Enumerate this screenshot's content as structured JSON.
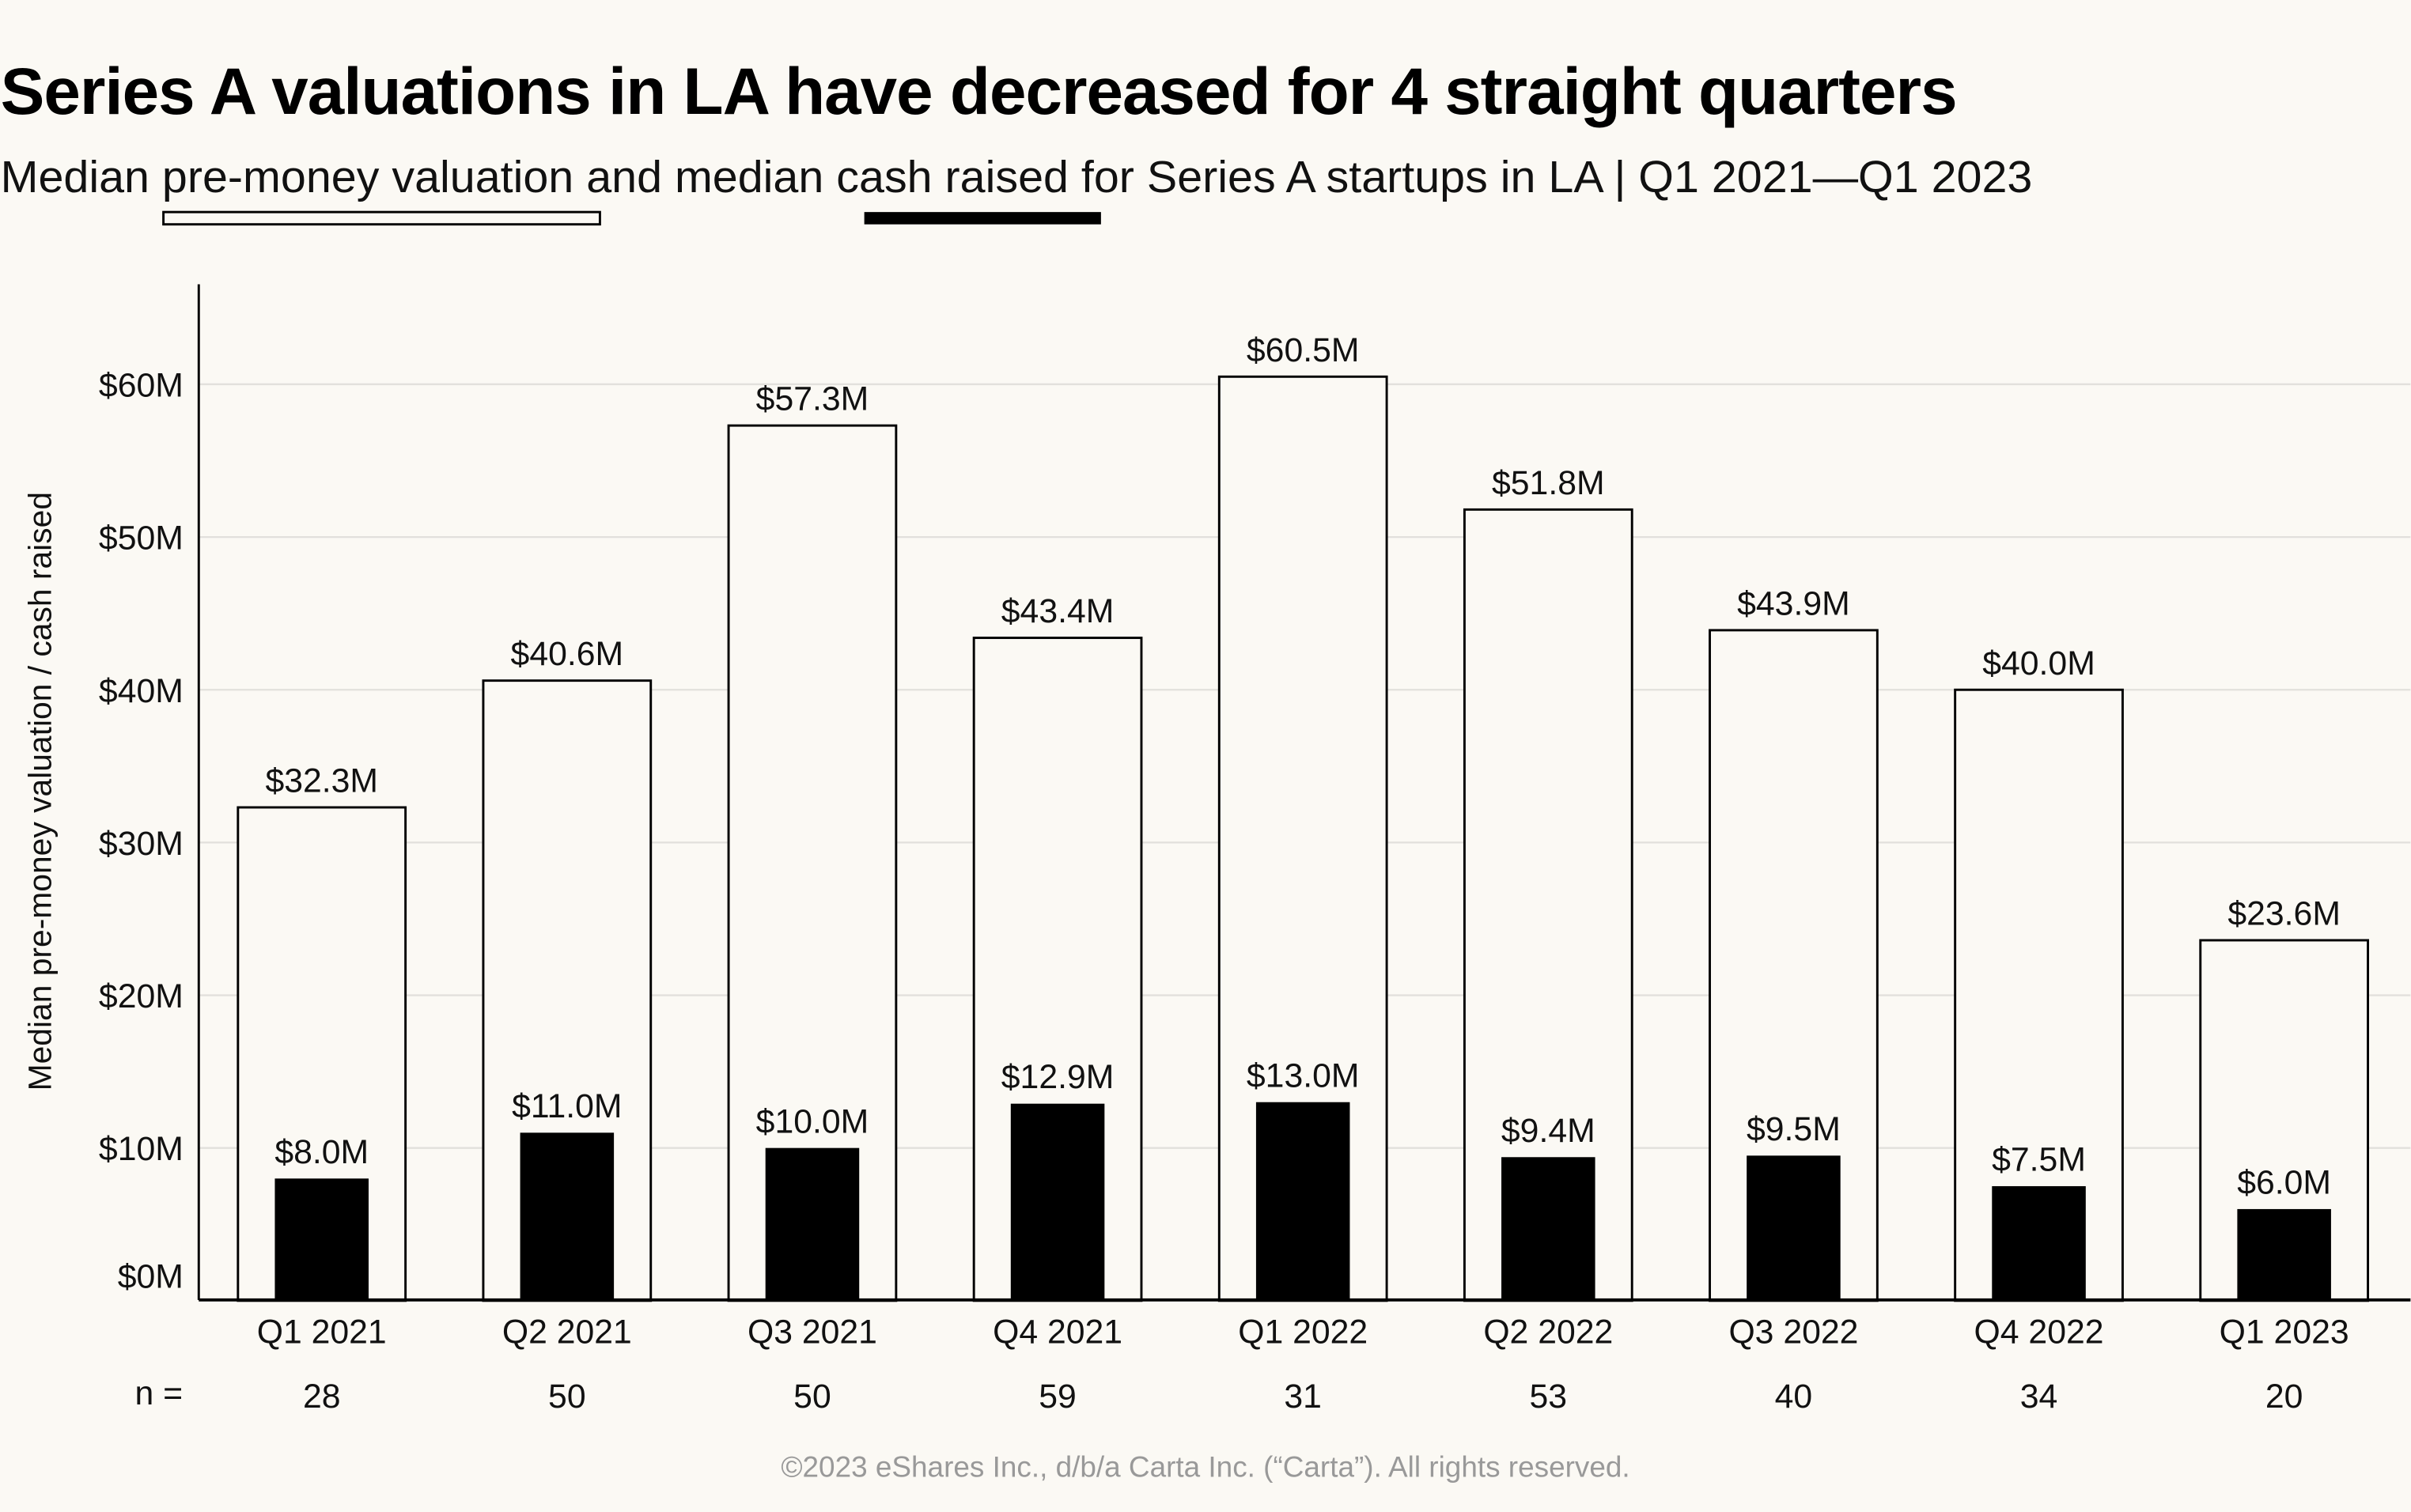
{
  "title": "Series A valuations in LA have decreased for 4 straight quarters",
  "subtitle": {
    "part1": "Median ",
    "valuation_term": "pre-money valuation",
    "part2": " and median ",
    "cash_term": "cash raised",
    "part3": " for Series A startups in LA |  Q1 2021—Q1 2023"
  },
  "footer": "©2023 eShares Inc., d/b/a Carta Inc. (“Carta”). All rights reserved.",
  "colors": {
    "background": "#fbf9f4",
    "valuation_fill": "#fbf9f4",
    "valuation_stroke": "#000000",
    "cash_fill": "#000000",
    "grid": "#e2e0dc",
    "footer": "#999999"
  },
  "chart_data": {
    "type": "bar",
    "title": "Series A valuations in LA have decreased for 4 straight quarters",
    "ylabel": "Median pre-money valuation / cash raised",
    "xlabel": "",
    "ylim": [
      0,
      65
    ],
    "grid": true,
    "legend": "in subtitle (hollow underline = pre-money valuation, black underline = cash raised)",
    "yticks": [
      "$0M",
      "$10M",
      "$20M",
      "$30M",
      "$40M",
      "$50M",
      "$60M"
    ],
    "ytick_values": [
      0,
      10,
      20,
      30,
      40,
      50,
      60
    ],
    "categories": [
      "Q1 2021",
      "Q2 2021",
      "Q3 2021",
      "Q4 2021",
      "Q1 2022",
      "Q2 2022",
      "Q3 2022",
      "Q4 2022",
      "Q1 2023"
    ],
    "series": [
      {
        "name": "pre-money valuation",
        "values": [
          32.3,
          40.6,
          57.3,
          43.4,
          60.5,
          51.8,
          43.9,
          40.0,
          23.6
        ],
        "labels": [
          "$32.3M",
          "$40.6M",
          "$57.3M",
          "$43.4M",
          "$60.5M",
          "$51.8M",
          "$43.9M",
          "$40.0M",
          "$23.6M"
        ]
      },
      {
        "name": "cash raised",
        "values": [
          8.0,
          11.0,
          10.0,
          12.9,
          13.0,
          9.4,
          9.5,
          7.5,
          6.0
        ],
        "labels": [
          "$8.0M",
          "$11.0M",
          "$10.0M",
          "$12.9M",
          "$13.0M",
          "$9.4M",
          "$9.5M",
          "$7.5M",
          "$6.0M"
        ]
      }
    ],
    "n_label": "n =",
    "n_values": [
      "28",
      "50",
      "50",
      "59",
      "31",
      "53",
      "40",
      "34",
      "20"
    ]
  }
}
